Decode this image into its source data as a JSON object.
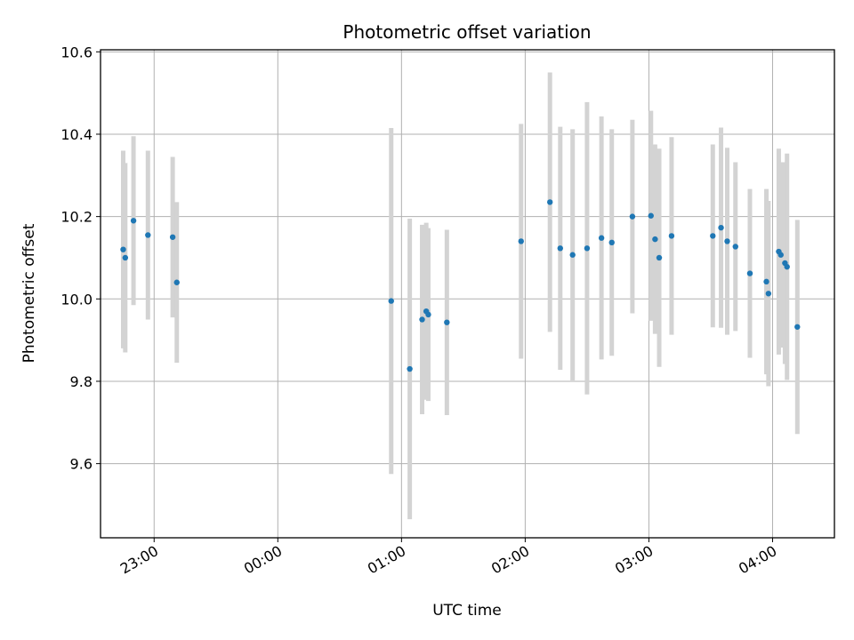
{
  "chart_data": {
    "type": "scatter",
    "title": "Photometric offset variation",
    "xlabel": "UTC time",
    "ylabel": "Photometric offset",
    "x_ticks": [
      "23:00",
      "00:00",
      "01:00",
      "02:00",
      "03:00",
      "04:00"
    ],
    "y_ticks": [
      "9.6",
      "9.8",
      "10.0",
      "10.2",
      "10.4",
      "10.6"
    ],
    "xlim": [
      "22:34",
      "04:30"
    ],
    "ylim": [
      9.42,
      10.605
    ],
    "grid": true,
    "colors": {
      "point": "#1f77b4",
      "errorbar": "#d3d3d3",
      "grid": "#b0b0b0"
    },
    "points": [
      {
        "x": "22:45",
        "y": 10.12,
        "err": 0.24
      },
      {
        "x": "22:46",
        "y": 10.1,
        "err": 0.23
      },
      {
        "x": "22:50",
        "y": 10.19,
        "err": 0.205
      },
      {
        "x": "22:57",
        "y": 10.155,
        "err": 0.205
      },
      {
        "x": "23:09",
        "y": 10.15,
        "err": 0.195
      },
      {
        "x": "23:11",
        "y": 10.04,
        "err": 0.195
      },
      {
        "x": "00:55",
        "y": 9.995,
        "err": 0.42
      },
      {
        "x": "01:04",
        "y": 9.83,
        "err": 0.365
      },
      {
        "x": "01:10",
        "y": 9.95,
        "err": 0.23
      },
      {
        "x": "01:12",
        "y": 9.97,
        "err": 0.215
      },
      {
        "x": "01:13",
        "y": 9.962,
        "err": 0.21
      },
      {
        "x": "01:22",
        "y": 9.943,
        "err": 0.225
      },
      {
        "x": "01:58",
        "y": 10.14,
        "err": 0.285
      },
      {
        "x": "02:12",
        "y": 10.235,
        "err": 0.315
      },
      {
        "x": "02:17",
        "y": 10.123,
        "err": 0.295
      },
      {
        "x": "02:23",
        "y": 10.107,
        "err": 0.305
      },
      {
        "x": "02:30",
        "y": 10.123,
        "err": 0.355
      },
      {
        "x": "02:37",
        "y": 10.148,
        "err": 0.295
      },
      {
        "x": "02:42",
        "y": 10.137,
        "err": 0.275
      },
      {
        "x": "02:52",
        "y": 10.2,
        "err": 0.235
      },
      {
        "x": "03:01",
        "y": 10.202,
        "err": 0.255
      },
      {
        "x": "03:03",
        "y": 10.145,
        "err": 0.23
      },
      {
        "x": "03:05",
        "y": 10.1,
        "err": 0.265
      },
      {
        "x": "03:11",
        "y": 10.153,
        "err": 0.24
      },
      {
        "x": "03:31",
        "y": 10.153,
        "err": 0.222
      },
      {
        "x": "03:35",
        "y": 10.173,
        "err": 0.243
      },
      {
        "x": "03:38",
        "y": 10.14,
        "err": 0.227
      },
      {
        "x": "03:42",
        "y": 10.127,
        "err": 0.205
      },
      {
        "x": "03:49",
        "y": 10.062,
        "err": 0.205
      },
      {
        "x": "03:57",
        "y": 10.042,
        "err": 0.225
      },
      {
        "x": "03:58",
        "y": 10.013,
        "err": 0.225
      },
      {
        "x": "04:03",
        "y": 10.115,
        "err": 0.25
      },
      {
        "x": "04:04",
        "y": 10.107,
        "err": 0.225
      },
      {
        "x": "04:06",
        "y": 10.087,
        "err": 0.245
      },
      {
        "x": "04:07",
        "y": 10.078,
        "err": 0.275
      },
      {
        "x": "04:12",
        "y": 9.932,
        "err": 0.26
      }
    ]
  }
}
